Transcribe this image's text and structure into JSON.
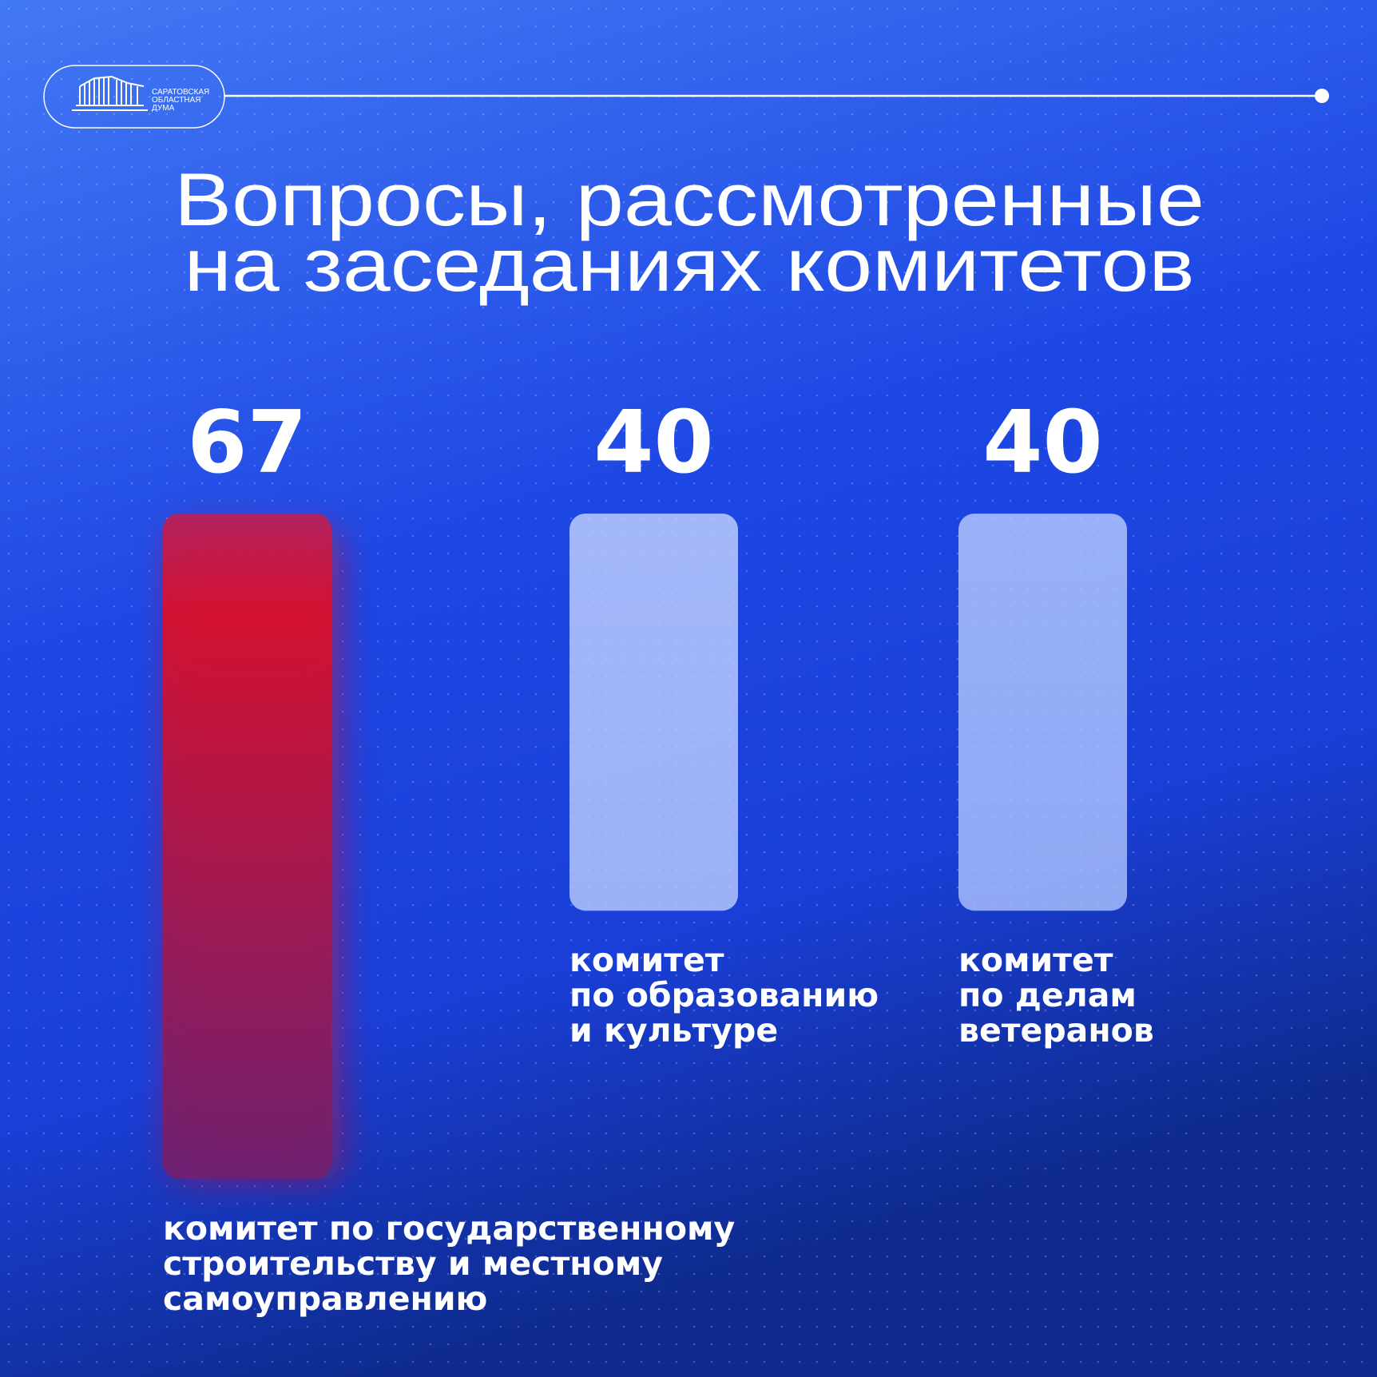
{
  "header": {
    "logo": [
      "САРАТОВСКАЯ",
      "ОБЛАСТНАЯ",
      "ДУМА"
    ]
  },
  "chart_data": {
    "type": "bar",
    "title": [
      "Вопросы, рассмотренные",
      "на заседаниях комитетов"
    ],
    "categories": [
      "комитет по государственному\nстроительству и местному\nсамоуправлению",
      "комитет\nпо образованию\nи культуре",
      "комитет\nпо делам\nветеранов"
    ],
    "values": [
      67,
      40,
      40
    ],
    "colors": [
      "#d8102c",
      "#b4c8ff",
      "#a4bcff"
    ]
  }
}
